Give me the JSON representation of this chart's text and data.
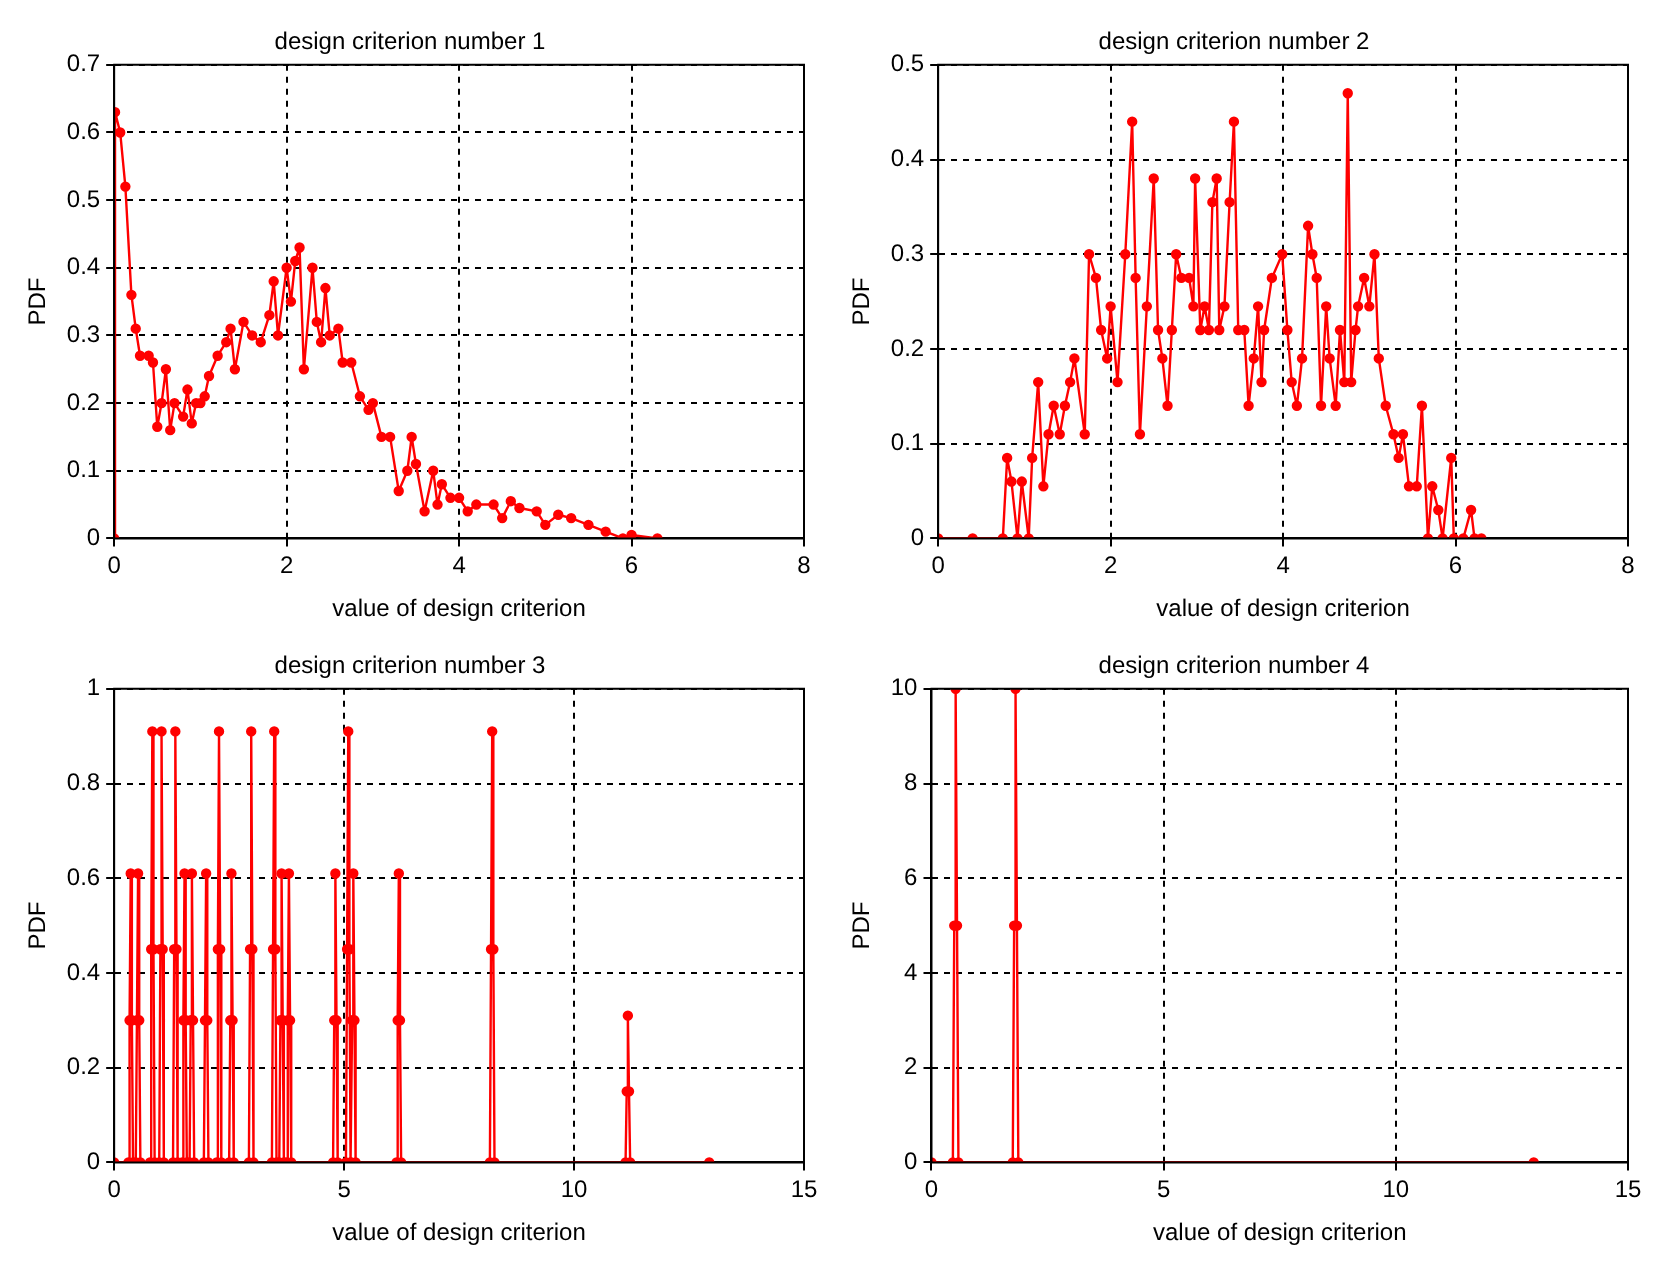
{
  "chart_data": [
    {
      "type": "line",
      "title": "design criterion number 1",
      "xlabel": "value of design criterion",
      "ylabel": "PDF",
      "color": "#ff0000",
      "marker": "circle",
      "line_style": "solid",
      "grid": true,
      "xlim": [
        0,
        8
      ],
      "ylim": [
        0,
        0.7
      ],
      "xticks": [
        0,
        2,
        4,
        6,
        8
      ],
      "yticks": [
        0,
        0.1,
        0.2,
        0.3,
        0.4,
        0.5,
        0.6,
        0.7
      ],
      "x": [
        0,
        0.01,
        0.07,
        0.13,
        0.2,
        0.25,
        0.3,
        0.4,
        0.45,
        0.5,
        0.55,
        0.6,
        0.65,
        0.7,
        0.8,
        0.85,
        0.9,
        0.95,
        1.0,
        1.05,
        1.1,
        1.2,
        1.3,
        1.35,
        1.4,
        1.5,
        1.6,
        1.7,
        1.8,
        1.85,
        1.9,
        2.0,
        2.05,
        2.1,
        2.15,
        2.2,
        2.3,
        2.35,
        2.4,
        2.45,
        2.5,
        2.6,
        2.65,
        2.75,
        2.85,
        2.95,
        3.0,
        3.1,
        3.2,
        3.3,
        3.4,
        3.45,
        3.5,
        3.6,
        3.7,
        3.75,
        3.8,
        3.9,
        4.0,
        4.1,
        4.2,
        4.4,
        4.5,
        4.6,
        4.7,
        4.9,
        5.0,
        5.15,
        5.3,
        5.5,
        5.7,
        5.9,
        6.0,
        6.3
      ],
      "values": [
        0,
        0.63,
        0.6,
        0.52,
        0.36,
        0.31,
        0.27,
        0.27,
        0.26,
        0.165,
        0.2,
        0.25,
        0.16,
        0.2,
        0.18,
        0.22,
        0.17,
        0.2,
        0.2,
        0.21,
        0.24,
        0.27,
        0.29,
        0.31,
        0.25,
        0.32,
        0.3,
        0.29,
        0.33,
        0.38,
        0.3,
        0.4,
        0.35,
        0.41,
        0.43,
        0.25,
        0.4,
        0.32,
        0.29,
        0.37,
        0.3,
        0.31,
        0.26,
        0.26,
        0.21,
        0.19,
        0.2,
        0.15,
        0.15,
        0.07,
        0.1,
        0.15,
        0.11,
        0.04,
        0.1,
        0.05,
        0.08,
        0.06,
        0.06,
        0.04,
        0.05,
        0.05,
        0.03,
        0.055,
        0.045,
        0.04,
        0.02,
        0.035,
        0.03,
        0.02,
        0.01,
        0,
        0.005,
        0
      ]
    },
    {
      "type": "line",
      "title": "design criterion number 2",
      "xlabel": "value of design criterion",
      "ylabel": "PDF",
      "color": "#ff0000",
      "marker": "circle",
      "line_style": "solid",
      "grid": true,
      "xlim": [
        0,
        8
      ],
      "ylim": [
        0,
        0.5
      ],
      "xticks": [
        0,
        2,
        4,
        6,
        8
      ],
      "yticks": [
        0,
        0.1,
        0.2,
        0.3,
        0.4,
        0.5
      ],
      "x": [
        0,
        0.4,
        0.75,
        0.8,
        0.85,
        0.92,
        0.97,
        1.05,
        1.09,
        1.16,
        1.22,
        1.28,
        1.34,
        1.41,
        1.47,
        1.53,
        1.58,
        1.7,
        1.75,
        1.83,
        1.89,
        1.96,
        2.0,
        2.08,
        2.17,
        2.25,
        2.29,
        2.34,
        2.42,
        2.5,
        2.55,
        2.6,
        2.66,
        2.71,
        2.76,
        2.82,
        2.91,
        2.96,
        2.98,
        3.04,
        3.09,
        3.14,
        3.18,
        3.23,
        3.26,
        3.32,
        3.38,
        3.43,
        3.48,
        3.55,
        3.6,
        3.66,
        3.71,
        3.75,
        3.78,
        3.87,
        3.99,
        4.05,
        4.1,
        4.16,
        4.22,
        4.29,
        4.34,
        4.39,
        4.44,
        4.5,
        4.54,
        4.61,
        4.66,
        4.71,
        4.75,
        4.79,
        4.84,
        4.87,
        4.94,
        5.0,
        5.06,
        5.11,
        5.19,
        5.28,
        5.34,
        5.39,
        5.46,
        5.55,
        5.61,
        5.68,
        5.73,
        5.8,
        5.85,
        5.95,
        5.98,
        6.09,
        6.18,
        6.22,
        6.3
      ],
      "values": [
        0,
        0,
        0,
        0.085,
        0.06,
        0,
        0.06,
        0,
        0.085,
        0.165,
        0.055,
        0.11,
        0.14,
        0.11,
        0.14,
        0.165,
        0.19,
        0.11,
        0.3,
        0.275,
        0.22,
        0.19,
        0.245,
        0.165,
        0.3,
        0.44,
        0.275,
        0.11,
        0.245,
        0.38,
        0.22,
        0.19,
        0.14,
        0.22,
        0.3,
        0.275,
        0.275,
        0.245,
        0.38,
        0.22,
        0.245,
        0.22,
        0.355,
        0.38,
        0.22,
        0.245,
        0.355,
        0.44,
        0.22,
        0.22,
        0.14,
        0.19,
        0.245,
        0.165,
        0.22,
        0.275,
        0.3,
        0.22,
        0.165,
        0.14,
        0.19,
        0.33,
        0.3,
        0.275,
        0.14,
        0.245,
        0.19,
        0.14,
        0.22,
        0.165,
        0.47,
        0.165,
        0.22,
        0.245,
        0.275,
        0.245,
        0.3,
        0.19,
        0.14,
        0.11,
        0.085,
        0.11,
        0.055,
        0.055,
        0.14,
        0,
        0.055,
        0.03,
        0,
        0.085,
        0,
        0,
        0.03,
        0,
        0
      ]
    },
    {
      "type": "line",
      "title": "design criterion number 3",
      "xlabel": "value of design criterion",
      "ylabel": "PDF",
      "color": "#ff0000",
      "marker": "circle",
      "line_style": "solid",
      "grid": true,
      "xlim": [
        0,
        15
      ],
      "ylim": [
        0,
        1
      ],
      "xticks": [
        0,
        5,
        10,
        15
      ],
      "yticks": [
        0,
        0.2,
        0.4,
        0.6,
        0.8,
        1
      ],
      "x": [
        0,
        0.31,
        0.335,
        0.36,
        0.385,
        0.41,
        0.47,
        0.495,
        0.52,
        0.545,
        0.57,
        0.78,
        0.805,
        0.83,
        0.855,
        0.88,
        0.98,
        1.005,
        1.03,
        1.055,
        1.08,
        1.28,
        1.305,
        1.33,
        1.355,
        1.38,
        1.48,
        1.505,
        1.53,
        1.555,
        1.58,
        1.64,
        1.665,
        1.69,
        1.715,
        1.74,
        1.95,
        1.975,
        2.0,
        2.025,
        2.05,
        2.23,
        2.255,
        2.28,
        2.305,
        2.33,
        2.5,
        2.525,
        2.55,
        2.575,
        2.6,
        2.93,
        2.955,
        2.98,
        3.005,
        3.03,
        3.43,
        3.455,
        3.48,
        3.505,
        3.53,
        3.59,
        3.615,
        3.64,
        3.665,
        3.69,
        3.75,
        3.775,
        3.8,
        3.825,
        3.85,
        4.76,
        4.785,
        4.81,
        4.835,
        4.86,
        5.04,
        5.065,
        5.09,
        5.115,
        5.14,
        5.15,
        5.175,
        5.2,
        5.225,
        5.25,
        6.14,
        6.165,
        6.19,
        6.215,
        6.24,
        8.17,
        8.195,
        8.22,
        8.245,
        8.27,
        11.12,
        11.145,
        11.17,
        11.195,
        11.22,
        12.94
      ],
      "values": [
        0,
        0,
        0.3,
        0.61,
        0.3,
        0,
        0,
        0.3,
        0.61,
        0.3,
        0,
        0,
        0.45,
        0.91,
        0.45,
        0,
        0,
        0.45,
        0.91,
        0.45,
        0,
        0,
        0.45,
        0.91,
        0.45,
        0,
        0,
        0.3,
        0.61,
        0.3,
        0,
        0,
        0.3,
        0.61,
        0.3,
        0,
        0,
        0.3,
        0.61,
        0.3,
        0,
        0,
        0.45,
        0.91,
        0.45,
        0,
        0,
        0.3,
        0.61,
        0.3,
        0,
        0,
        0.45,
        0.91,
        0.45,
        0,
        0,
        0.45,
        0.91,
        0.45,
        0,
        0,
        0.3,
        0.61,
        0.3,
        0,
        0,
        0.3,
        0.61,
        0.3,
        0,
        0,
        0.3,
        0.61,
        0.3,
        0,
        0,
        0.45,
        0.91,
        0.45,
        0,
        0,
        0.3,
        0.61,
        0.3,
        0,
        0,
        0.3,
        0.61,
        0.3,
        0,
        0,
        0.45,
        0.91,
        0.45,
        0,
        0,
        0.15,
        0.31,
        0.15,
        0,
        0
      ]
    },
    {
      "type": "line",
      "title": "design criterion number 4",
      "xlabel": "value of design criterion",
      "ylabel": "PDF",
      "color": "#ff0000",
      "marker": "circle",
      "line_style": "solid",
      "grid": true,
      "xlim": [
        0,
        15
      ],
      "ylim": [
        0,
        10
      ],
      "xticks": [
        0,
        5,
        10,
        15
      ],
      "yticks": [
        0,
        2,
        4,
        6,
        8,
        10
      ],
      "x": [
        0,
        0.46,
        0.49,
        0.52,
        0.55,
        0.58,
        1.75,
        1.78,
        1.81,
        1.84,
        1.87,
        12.97
      ],
      "values": [
        0,
        0,
        5,
        10,
        5,
        0,
        0,
        5,
        10,
        5,
        0,
        0
      ]
    }
  ]
}
